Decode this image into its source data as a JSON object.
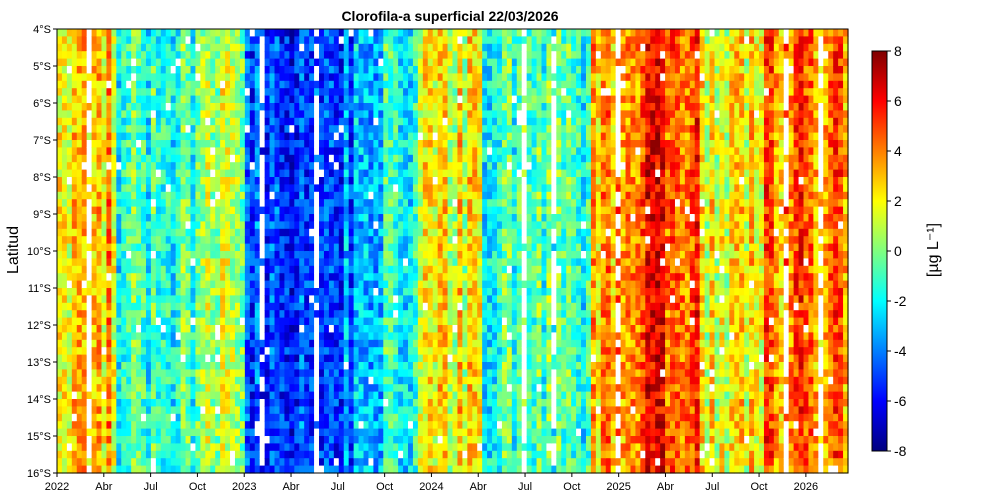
{
  "chart_data": {
    "type": "heatmap",
    "title": "Clorofila-a superficial 22/03/2026",
    "ylabel": "Latitud",
    "colorbar_label": "[µg L⁻¹]",
    "x_tick_labels": [
      "2022",
      "Abr",
      "Jul",
      "Oct",
      "2023",
      "Abr",
      "Jul",
      "Oct",
      "2024",
      "Abr",
      "Jul",
      "Oct",
      "2025",
      "Abr",
      "Jul",
      "Oct",
      "2026"
    ],
    "x_tick_month_index": [
      0,
      3,
      6,
      9,
      12,
      15,
      18,
      21,
      24,
      27,
      30,
      33,
      36,
      39,
      42,
      45,
      48
    ],
    "x_range_months": [
      0,
      50.7
    ],
    "y_tick_labels": [
      "4°S",
      "5°S",
      "6°S",
      "7°S",
      "8°S",
      "9°S",
      "10°S",
      "11°S",
      "12°S",
      "13°S",
      "14°S",
      "15°S",
      "16°S"
    ],
    "y_tick_values": [
      -4,
      -5,
      -6,
      -7,
      -8,
      -9,
      -10,
      -11,
      -12,
      -13,
      -14,
      -15,
      -16
    ],
    "y_range": [
      -16,
      -4
    ],
    "colorbar_ticks": [
      8,
      6,
      4,
      2,
      0,
      -2,
      -4,
      -6,
      -8
    ],
    "colorbar_range": [
      -8,
      8
    ],
    "colormap": [
      "#00007f",
      "#0000ff",
      "#007fff",
      "#00ffff",
      "#7fff7f",
      "#ffff00",
      "#ff7f00",
      "#ff0000",
      "#7f0000"
    ],
    "missing_color": "#ffffff",
    "contours": true,
    "periods_approx": [
      {
        "start_month": 0,
        "end_month": 3.5,
        "mean_value": 3
      },
      {
        "start_month": 3.5,
        "end_month": 9,
        "mean_value": -1
      },
      {
        "start_month": 9,
        "end_month": 12,
        "mean_value": 1
      },
      {
        "start_month": 12,
        "end_month": 19,
        "mean_value": -4.5
      },
      {
        "start_month": 19,
        "end_month": 23,
        "mean_value": -2
      },
      {
        "start_month": 23,
        "end_month": 27,
        "mean_value": 2
      },
      {
        "start_month": 27,
        "end_month": 34,
        "mean_value": -1
      },
      {
        "start_month": 34,
        "end_month": 37,
        "mean_value": 3
      },
      {
        "start_month": 37,
        "end_month": 41,
        "mean_value": 5
      },
      {
        "start_month": 41,
        "end_month": 45,
        "mean_value": 2
      },
      {
        "start_month": 45,
        "end_month": 50.7,
        "mean_value": 4
      }
    ]
  }
}
